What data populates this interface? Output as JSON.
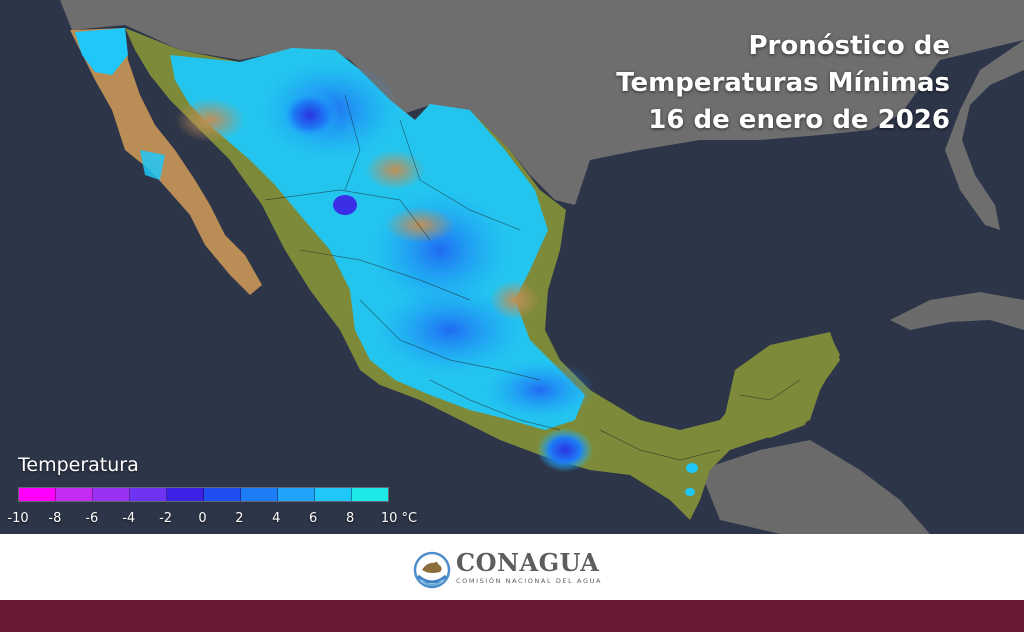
{
  "title": {
    "line1": "Pronóstico de",
    "line2": "Temperaturas Mínimas",
    "line3": "16 de enero de 2026"
  },
  "legend": {
    "title": "Temperatura",
    "unit": "°C",
    "ticks": [
      "-10",
      "-8",
      "-6",
      "-4",
      "-2",
      "0",
      "2",
      "4",
      "6",
      "8",
      "10 °C"
    ],
    "bins": [
      {
        "from": -10,
        "to": -8,
        "color": "#ff00ff"
      },
      {
        "from": -8,
        "to": -6,
        "color": "#c42cf4"
      },
      {
        "from": -6,
        "to": -4,
        "color": "#9a32f4"
      },
      {
        "from": -4,
        "to": -2,
        "color": "#6f33f4"
      },
      {
        "from": -2,
        "to": 0,
        "color": "#3d22e6"
      },
      {
        "from": 0,
        "to": 2,
        "color": "#1f4ff0"
      },
      {
        "from": 2,
        "to": 4,
        "color": "#1d7cf6"
      },
      {
        "from": 4,
        "to": 6,
        "color": "#1fa3fb"
      },
      {
        "from": 6,
        "to": 8,
        "color": "#1fc8f9"
      },
      {
        "from": 8,
        "to": 10,
        "color": "#1fe8e8"
      }
    ]
  },
  "colors": {
    "ocean": "#2d3548",
    "land_usa": "#6f6f6f",
    "land_mexico_warm": "#7d8a3a",
    "land_arid": "#b98d55",
    "band": "#6a1a35"
  },
  "logo": {
    "name": "CONAGUA",
    "subtitle": "COMISIÓN NACIONAL DEL AGUA"
  }
}
